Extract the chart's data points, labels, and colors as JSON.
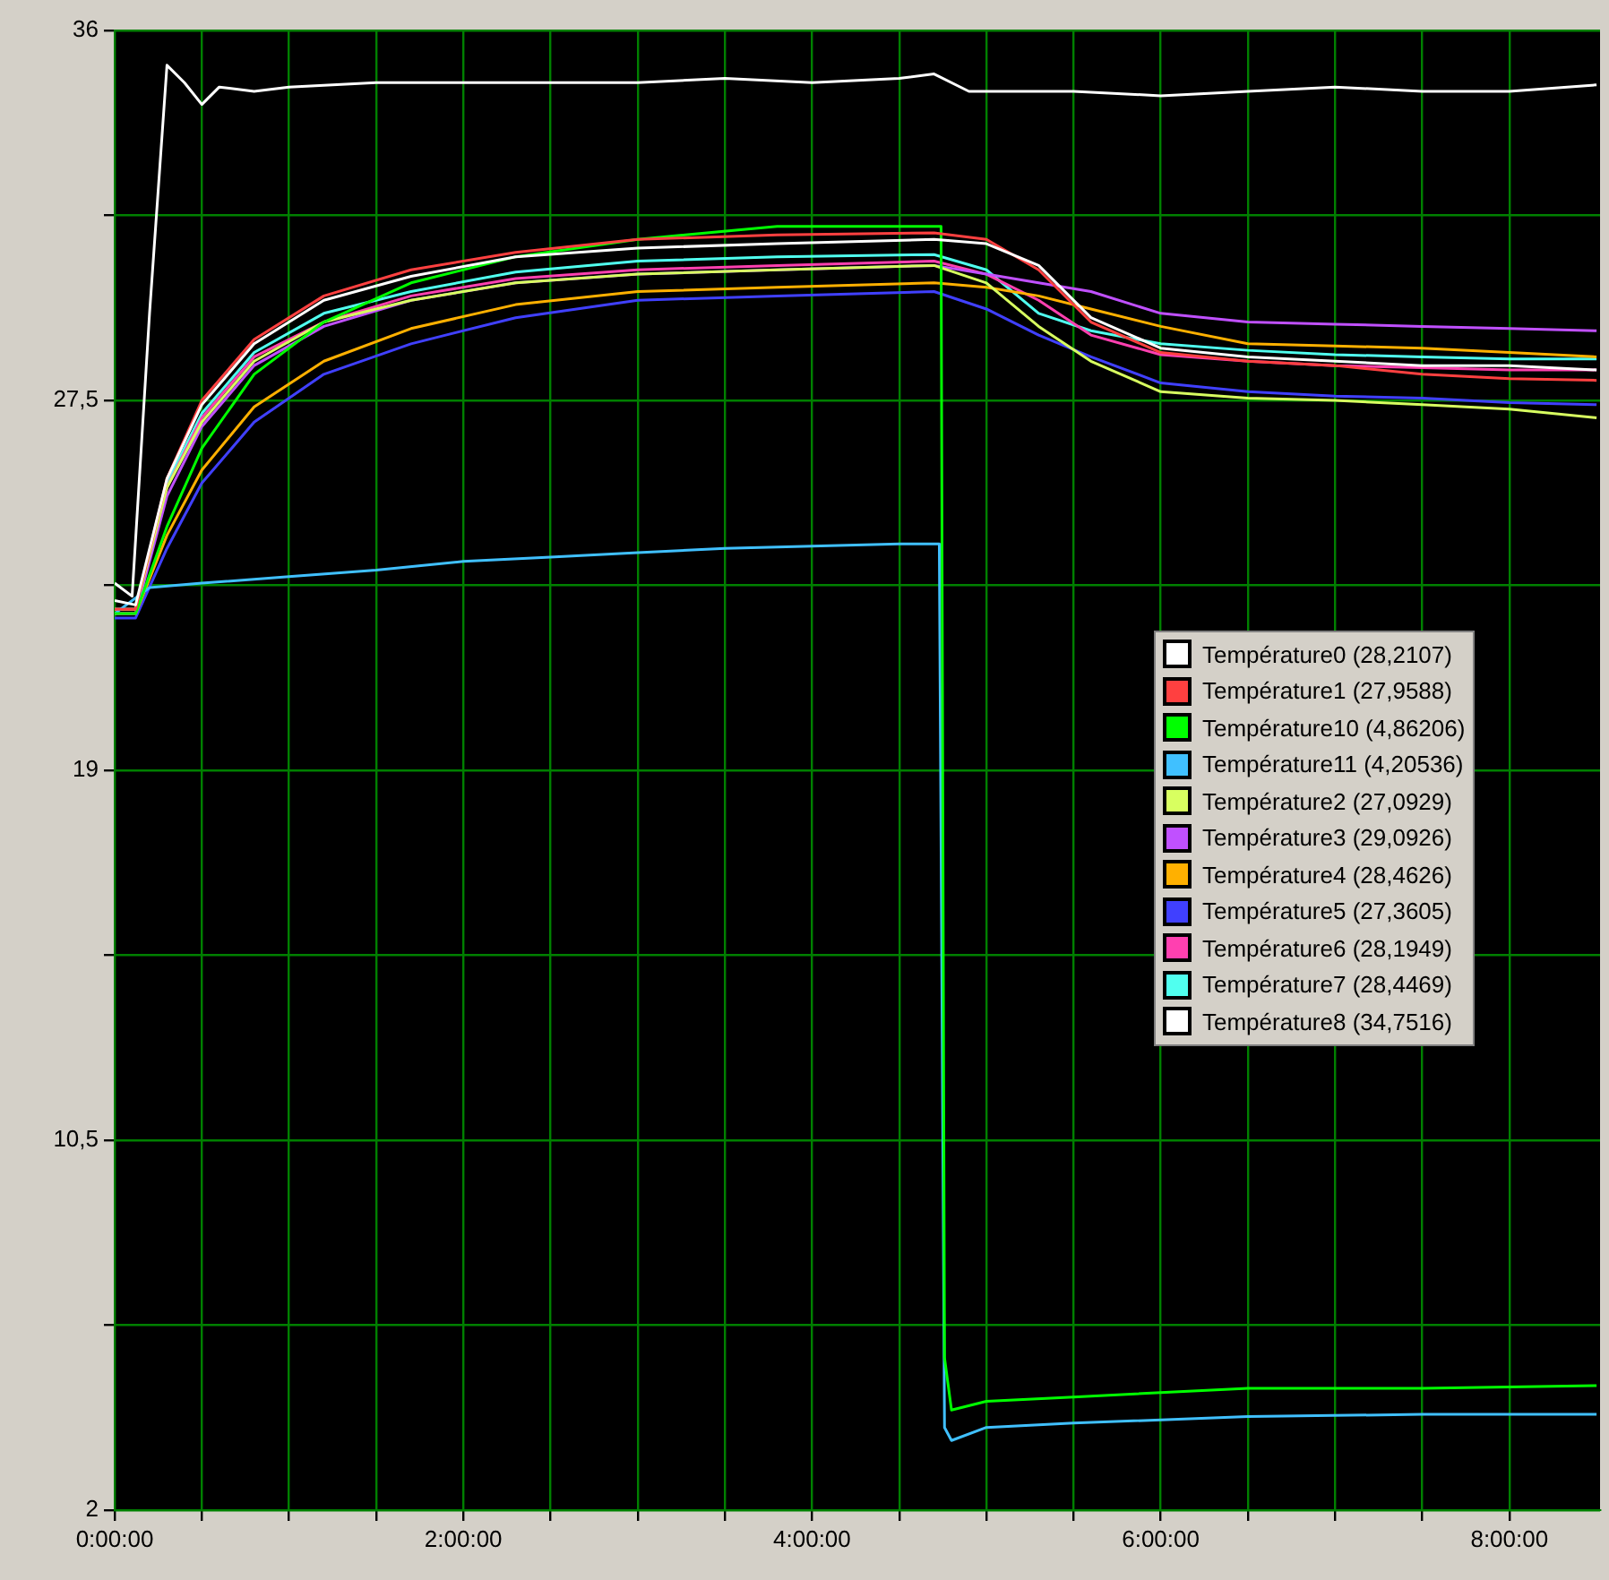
{
  "chart_data": {
    "type": "line",
    "legend": "right",
    "grid": true,
    "marker": "none",
    "line_style": "solid",
    "x": [
      0,
      0.12,
      0.3,
      0.5,
      0.8,
      1.2,
      1.7,
      2.3,
      3.0,
      3.8,
      4.7,
      5.0,
      5.3,
      5.6,
      6.0,
      6.5,
      7.0,
      7.5,
      8.0,
      8.5
    ],
    "xlim": [
      0,
      8.52
    ],
    "xticks": [
      {
        "value": 0,
        "label": "0:00:00"
      },
      {
        "value": 0.5,
        "label": null
      },
      {
        "value": 1,
        "label": null
      },
      {
        "value": 1.5,
        "label": null
      },
      {
        "value": 2,
        "label": "2:00:00"
      },
      {
        "value": 2.5,
        "label": null
      },
      {
        "value": 3,
        "label": null
      },
      {
        "value": 3.5,
        "label": null
      },
      {
        "value": 4,
        "label": "4:00:00"
      },
      {
        "value": 4.5,
        "label": null
      },
      {
        "value": 5,
        "label": null
      },
      {
        "value": 5.5,
        "label": null
      },
      {
        "value": 6,
        "label": "6:00:00"
      },
      {
        "value": 6.5,
        "label": null
      },
      {
        "value": 7,
        "label": null
      },
      {
        "value": 7.5,
        "label": null
      },
      {
        "value": 8,
        "label": "8:00:00"
      }
    ],
    "ylim": [
      2,
      36
    ],
    "yticks": [
      2,
      {
        "value": 6.25,
        "label": null
      },
      {
        "value": 10.5,
        "label": "10,5"
      },
      {
        "value": 14.75,
        "label": null
      },
      19,
      {
        "value": 23.25,
        "label": null
      },
      {
        "value": 27.5,
        "label": "27,5"
      },
      {
        "value": 31.75,
        "label": null
      },
      36
    ],
    "series": [
      {
        "name": "Température0 (28,2107)",
        "color": "#ffffff",
        "values": [
          22.9,
          22.8,
          25.7,
          27.4,
          28.8,
          29.8,
          30.35,
          30.8,
          31.0,
          31.1,
          31.2,
          31.1,
          30.6,
          29.4,
          28.7,
          28.5,
          28.4,
          28.3,
          28.3,
          28.2
        ]
      },
      {
        "name": "Température1 (27,9588)",
        "color": "#ff4040",
        "values": [
          22.7,
          22.7,
          25.7,
          27.5,
          28.9,
          29.9,
          30.5,
          30.9,
          31.2,
          31.3,
          31.35,
          31.2,
          30.5,
          29.3,
          28.6,
          28.4,
          28.3,
          28.1,
          28.0,
          27.96
        ]
      },
      {
        "name": "Température10 (4,86206)",
        "color": "#00ff00",
        "x": [
          0,
          0.12,
          0.3,
          0.5,
          0.8,
          1.2,
          1.7,
          2.3,
          3.0,
          3.8,
          4.7,
          4.74,
          4.76,
          4.8,
          5.0,
          5.5,
          6.5,
          7.5,
          8.5
        ],
        "values": [
          22.6,
          22.6,
          24.6,
          26.4,
          28.1,
          29.3,
          30.2,
          30.8,
          31.2,
          31.5,
          31.5,
          31.5,
          5.5,
          4.3,
          4.5,
          4.6,
          4.8,
          4.8,
          4.86
        ]
      },
      {
        "name": "Température11 (4,20536)",
        "color": "#40c0ff",
        "x": [
          0,
          0.2,
          0.5,
          1,
          1.5,
          2,
          2.5,
          3,
          3.5,
          4,
          4.5,
          4.73,
          4.76,
          4.8,
          5.0,
          5.5,
          6.5,
          7.5,
          8.5
        ],
        "values": [
          22.6,
          23.2,
          23.3,
          23.45,
          23.6,
          23.8,
          23.9,
          24.0,
          24.1,
          24.15,
          24.2,
          24.2,
          3.9,
          3.6,
          3.9,
          4.0,
          4.15,
          4.2,
          4.2
        ]
      },
      {
        "name": "Température2 (27,0929)",
        "color": "#d8ff60",
        "values": [
          22.7,
          22.7,
          25.5,
          27.0,
          28.4,
          29.3,
          29.8,
          30.2,
          30.4,
          30.5,
          30.6,
          30.2,
          29.2,
          28.4,
          27.7,
          27.55,
          27.5,
          27.4,
          27.3,
          27.1
        ]
      },
      {
        "name": "Température3 (29,0926)",
        "color": "#c050ff",
        "values": [
          22.6,
          22.6,
          25.3,
          26.9,
          28.3,
          29.2,
          29.8,
          30.2,
          30.4,
          30.5,
          30.6,
          30.4,
          30.2,
          30.0,
          29.5,
          29.3,
          29.25,
          29.2,
          29.15,
          29.1
        ]
      },
      {
        "name": "Température4 (28,4626)",
        "color": "#ffb000",
        "values": [
          22.6,
          22.6,
          24.4,
          25.9,
          27.35,
          28.4,
          29.15,
          29.7,
          30.0,
          30.1,
          30.2,
          30.1,
          29.9,
          29.6,
          29.2,
          28.8,
          28.75,
          28.7,
          28.6,
          28.5
        ]
      },
      {
        "name": "Température5 (27,3605)",
        "color": "#4040ff",
        "values": [
          22.5,
          22.5,
          24.1,
          25.6,
          27.0,
          28.1,
          28.8,
          29.4,
          29.8,
          29.9,
          30.0,
          29.6,
          29.0,
          28.5,
          27.9,
          27.7,
          27.6,
          27.55,
          27.45,
          27.4
        ]
      },
      {
        "name": "Température6 (28,1949)",
        "color": "#ff40b0",
        "values": [
          22.7,
          22.7,
          25.5,
          27.1,
          28.5,
          29.3,
          29.9,
          30.3,
          30.5,
          30.6,
          30.7,
          30.4,
          29.8,
          29.0,
          28.55,
          28.4,
          28.3,
          28.25,
          28.2,
          28.2
        ]
      },
      {
        "name": "Température7 (28,4469)",
        "color": "#50ffef",
        "values": [
          22.7,
          22.7,
          25.6,
          27.2,
          28.6,
          29.5,
          30.0,
          30.45,
          30.7,
          30.8,
          30.85,
          30.5,
          29.5,
          29.1,
          28.8,
          28.65,
          28.55,
          28.5,
          28.45,
          28.45
        ]
      },
      {
        "name": "Température8 (34,7516)",
        "color": "#ffffff",
        "x": [
          0,
          0.1,
          0.2,
          0.3,
          0.4,
          0.5,
          0.6,
          0.8,
          1,
          1.5,
          2,
          2.5,
          3,
          3.5,
          4,
          4.5,
          4.7,
          4.9,
          5.5,
          6,
          6.5,
          7,
          7.5,
          8,
          8.5
        ],
        "values": [
          23.3,
          23.0,
          29.5,
          35.2,
          34.8,
          34.3,
          34.7,
          34.6,
          34.7,
          34.8,
          34.8,
          34.8,
          34.8,
          34.9,
          34.8,
          34.9,
          35.0,
          34.6,
          34.6,
          34.5,
          34.6,
          34.7,
          34.6,
          34.6,
          34.75
        ]
      }
    ]
  }
}
